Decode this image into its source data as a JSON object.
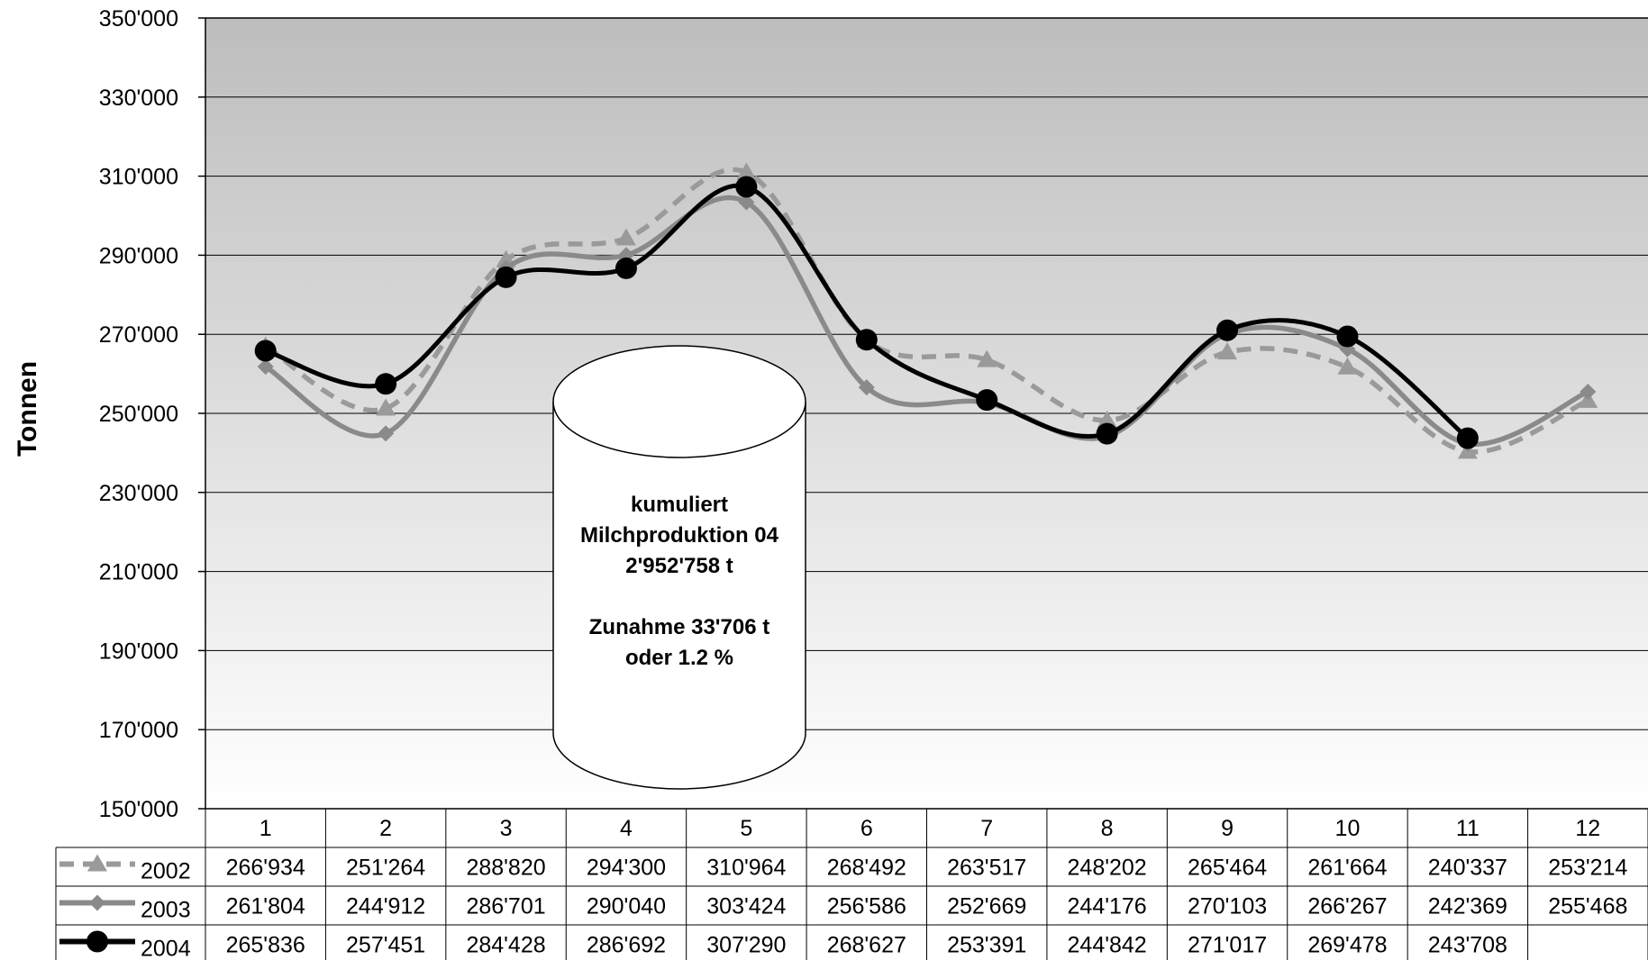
{
  "chart_data": {
    "type": "line",
    "ylabel": "Tonnen",
    "ylim": [
      150000,
      350000
    ],
    "yticks": [
      "150'000",
      "170'000",
      "190'000",
      "210'000",
      "230'000",
      "250'000",
      "270'000",
      "290'000",
      "310'000",
      "330'000",
      "350'000"
    ],
    "categories": [
      "1",
      "2",
      "3",
      "4",
      "5",
      "6",
      "7",
      "8",
      "9",
      "10",
      "11",
      "12"
    ],
    "grid": true,
    "data_table": true,
    "series": [
      {
        "name": "2002",
        "color": "#9a9a9a",
        "dash": true,
        "marker": "triangle",
        "values": [
          266934,
          251264,
          288820,
          294300,
          310964,
          268492,
          263517,
          248202,
          265464,
          261664,
          240337,
          253214
        ],
        "labels": [
          "266'934",
          "251'264",
          "288'820",
          "294'300",
          "310'964",
          "268'492",
          "263'517",
          "248'202",
          "265'464",
          "261'664",
          "240'337",
          "253'214"
        ]
      },
      {
        "name": "2003",
        "color": "#8a8a8a",
        "dash": false,
        "marker": "diamond",
        "values": [
          261804,
          244912,
          286701,
          290040,
          303424,
          256586,
          252669,
          244176,
          270103,
          266267,
          242369,
          255468
        ],
        "labels": [
          "261'804",
          "244'912",
          "286'701",
          "290'040",
          "303'424",
          "256'586",
          "252'669",
          "244'176",
          "270'103",
          "266'267",
          "242'369",
          "255'468"
        ]
      },
      {
        "name": "2004",
        "color": "#000000",
        "dash": false,
        "marker": "circle",
        "values": [
          265836,
          257451,
          284428,
          286692,
          307290,
          268627,
          253391,
          244842,
          271017,
          269478,
          243708,
          null
        ],
        "labels": [
          "265'836",
          "257'451",
          "284'428",
          "286'692",
          "307'290",
          "268'627",
          "253'391",
          "244'842",
          "271'017",
          "269'478",
          "243'708",
          ""
        ]
      }
    ],
    "annotation": {
      "lines": [
        "kumuliert",
        "Milchproduktion 04",
        "2'952'758 t",
        "",
        "Zunahme  33'706 t",
        "oder  1.2 %"
      ]
    }
  }
}
